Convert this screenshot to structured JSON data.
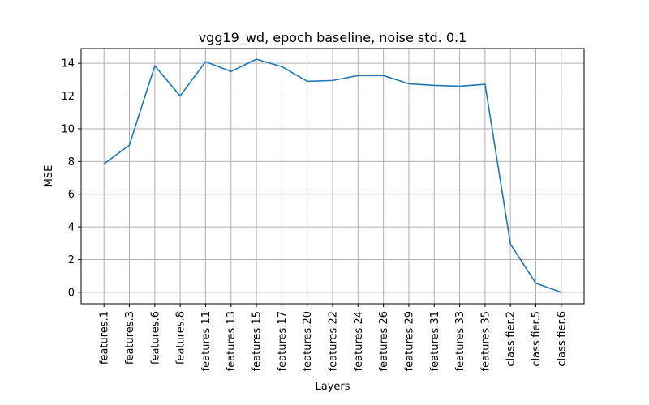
{
  "chart_data": {
    "type": "line",
    "title": "vgg19_wd, epoch baseline, noise std. 0.1",
    "xlabel": "Layers",
    "ylabel": "MSE",
    "categories": [
      "features.1",
      "features.3",
      "features.6",
      "features.8",
      "features.11",
      "features.13",
      "features.15",
      "features.17",
      "features.20",
      "features.22",
      "features.24",
      "features.26",
      "features.29",
      "features.31",
      "features.33",
      "features.35",
      "classifier.2",
      "classifier.5",
      "classifier.6"
    ],
    "series": [
      {
        "values": [
          7.85,
          9.0,
          13.85,
          12.0,
          14.1,
          13.5,
          14.25,
          13.8,
          12.9,
          12.95,
          13.25,
          13.25,
          12.75,
          12.65,
          12.6,
          12.72,
          2.95,
          0.55,
          0.0
        ],
        "color": "#1f77b4"
      }
    ],
    "ylim": [
      -0.7,
      14.9
    ],
    "yticks": [
      0,
      2,
      4,
      6,
      8,
      10,
      12,
      14
    ],
    "grid": true,
    "legend": "none"
  }
}
